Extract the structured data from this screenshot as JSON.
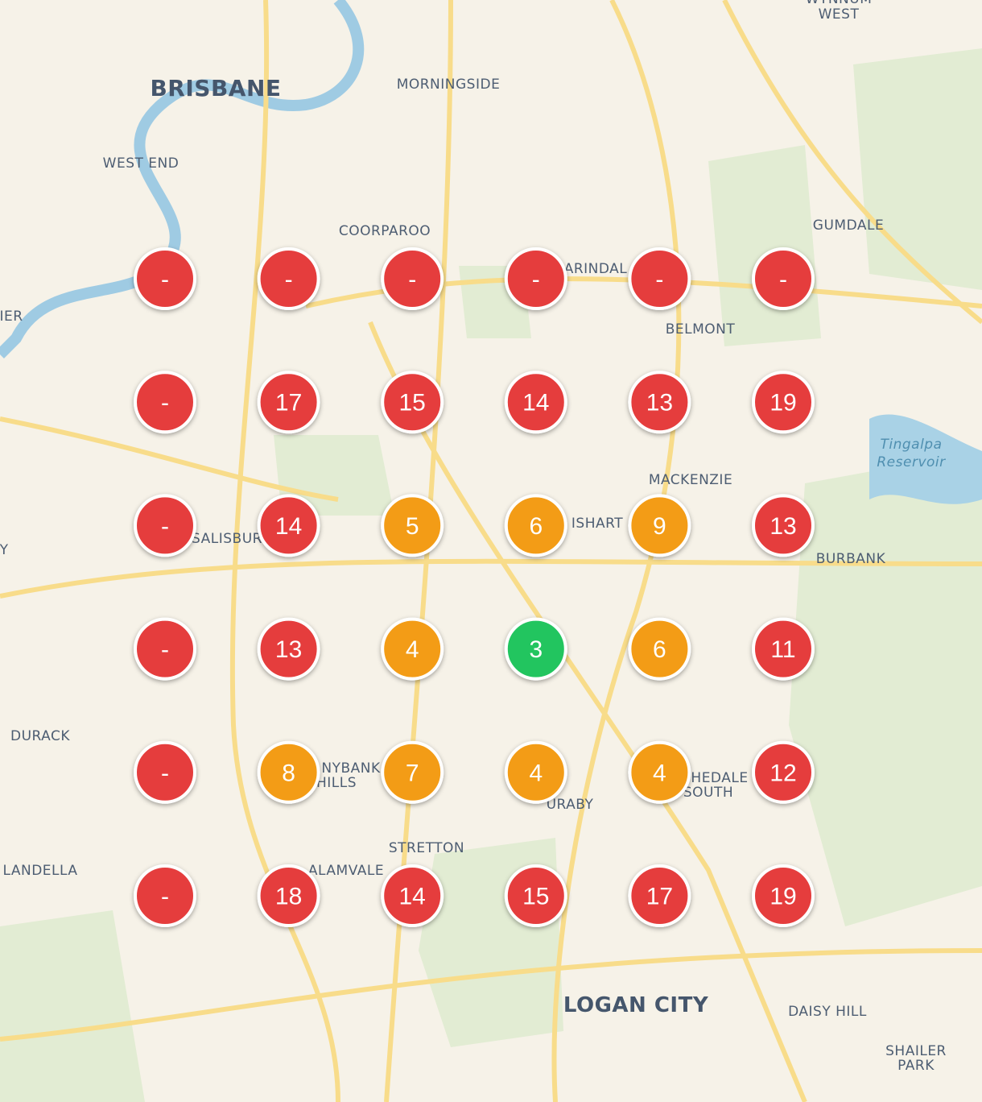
{
  "places": [
    {
      "lines": [
        "WYNNUM",
        "WEST"
      ]
    },
    {
      "lines": [
        "BRISBANE"
      ]
    },
    {
      "lines": [
        "MORNINGSIDE"
      ]
    },
    {
      "lines": [
        "WEST END"
      ]
    },
    {
      "lines": [
        "COORPAROO"
      ]
    },
    {
      "lines": [
        "GUMDALE"
      ]
    },
    {
      "lines": [
        "ARINDAL"
      ]
    },
    {
      "lines": [
        "IER"
      ]
    },
    {
      "lines": [
        "BELMONT"
      ]
    },
    {
      "lines": [
        "Tingalpa",
        "Reservoir"
      ]
    },
    {
      "lines": [
        "MACKENZIE"
      ]
    },
    {
      "lines": [
        "ISHART"
      ]
    },
    {
      "lines": [
        "SALISBUR"
      ]
    },
    {
      "lines": [
        "Y"
      ]
    },
    {
      "lines": [
        "BURBANK"
      ]
    },
    {
      "lines": [
        "DURACK"
      ]
    },
    {
      "lines": [
        "NYBANK",
        "HILLS"
      ]
    },
    {
      "lines": [
        "URABY"
      ]
    },
    {
      "lines": [
        "HEDALE",
        "SOUTH"
      ]
    },
    {
      "lines": [
        "STRETTON"
      ]
    },
    {
      "lines": [
        "ALAMVALE"
      ]
    },
    {
      "lines": [
        "LANDELLA"
      ]
    },
    {
      "lines": [
        "LOGAN CITY"
      ]
    },
    {
      "lines": [
        "DAISY HILL"
      ]
    },
    {
      "lines": [
        "SHAILER",
        "PARK"
      ]
    }
  ],
  "markers": [
    {
      "text": "-",
      "color": "#e53e3e"
    },
    {
      "text": "-",
      "color": "#e53e3e"
    },
    {
      "text": "-",
      "color": "#e53e3e"
    },
    {
      "text": "-",
      "color": "#e53e3e"
    },
    {
      "text": "-",
      "color": "#e53e3e"
    },
    {
      "text": "-",
      "color": "#e53e3e"
    },
    {
      "text": "-",
      "color": "#e53e3e"
    },
    {
      "text": 17,
      "color": "#e53e3e"
    },
    {
      "text": 15,
      "color": "#e53e3e"
    },
    {
      "text": 14,
      "color": "#e53e3e"
    },
    {
      "text": 13,
      "color": "#e53e3e"
    },
    {
      "text": 19,
      "color": "#e53e3e"
    },
    {
      "text": "-",
      "color": "#e53e3e"
    },
    {
      "text": 14,
      "color": "#e53e3e"
    },
    {
      "text": 5,
      "color": "#f39c12"
    },
    {
      "text": 6,
      "color": "#f39c12"
    },
    {
      "text": 9,
      "color": "#f39c12"
    },
    {
      "text": 13,
      "color": "#e53e3e"
    },
    {
      "text": "-",
      "color": "#e53e3e"
    },
    {
      "text": 13,
      "color": "#e53e3e"
    },
    {
      "text": 4,
      "color": "#f39c12"
    },
    {
      "text": 3,
      "color": "#22c55e"
    },
    {
      "text": 6,
      "color": "#f39c12"
    },
    {
      "text": 11,
      "color": "#e53e3e"
    },
    {
      "text": "-",
      "color": "#e53e3e"
    },
    {
      "text": 8,
      "color": "#f39c12"
    },
    {
      "text": 7,
      "color": "#f39c12"
    },
    {
      "text": 4,
      "color": "#f39c12"
    },
    {
      "text": 4,
      "color": "#f39c12"
    },
    {
      "text": 12,
      "color": "#e53e3e"
    },
    {
      "text": "-",
      "color": "#e53e3e"
    },
    {
      "text": 18,
      "color": "#e53e3e"
    },
    {
      "text": 14,
      "color": "#e53e3e"
    },
    {
      "text": 15,
      "color": "#e53e3e"
    },
    {
      "text": 17,
      "color": "#e53e3e"
    },
    {
      "text": 19,
      "color": "#e53e3e"
    }
  ]
}
